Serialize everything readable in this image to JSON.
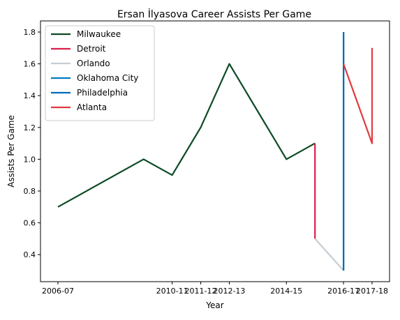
{
  "chart_data": {
    "type": "line",
    "title": "Ersan İlyasova Career Assists Per Game",
    "xlabel": "Year",
    "ylabel": "Assists Per Game",
    "x_tick_labels": [
      "2006-07",
      "2010-11",
      "2011-12",
      "2012-13",
      "2014-15",
      "2016-17",
      "2017-18"
    ],
    "y_ticks": [
      0.4,
      0.6,
      0.8,
      1.0,
      1.2,
      1.4,
      1.6,
      1.8
    ],
    "y_tick_labels": [
      "0.4",
      "0.6",
      "0.8",
      "1.0",
      "1.2",
      "1.4",
      "1.6",
      "1.8"
    ],
    "ylim": [
      0.23,
      1.87
    ],
    "grid": false,
    "legend_position": "top-left",
    "series": [
      {
        "name": "Milwaukee",
        "color": "#0b4a24",
        "points": [
          {
            "x": "2006-07",
            "y": 0.7
          },
          {
            "x": "2009-10",
            "y": 1.0
          },
          {
            "x": "2010-11",
            "y": 0.9
          },
          {
            "x": "2011-12",
            "y": 1.2
          },
          {
            "x": "2012-13",
            "y": 1.6
          },
          {
            "x": "2013-14",
            "y": 1.3
          },
          {
            "x": "2014-15",
            "y": 1.0
          },
          {
            "x": "2015-16",
            "y": 1.1
          }
        ]
      },
      {
        "name": "Detroit",
        "color": "#d91f4d",
        "points": [
          {
            "x": "2015-16",
            "y": 1.1
          },
          {
            "x": "2015-16",
            "y": 0.5
          }
        ]
      },
      {
        "name": "Orlando",
        "color": "#c4ced4",
        "points": [
          {
            "x": "2015-16",
            "y": 0.5
          },
          {
            "x": "2016-17",
            "y": 0.3
          }
        ]
      },
      {
        "name": "Oklahoma City",
        "color": "#007ac1",
        "points": [
          {
            "x": "2016-17",
            "y": 0.3
          },
          {
            "x": "2016-17",
            "y": 1.8
          }
        ]
      },
      {
        "name": "Philadelphia",
        "color": "#006bb6",
        "points": [
          {
            "x": "2016-17",
            "y": 0.3
          },
          {
            "x": "2016-17",
            "y": 1.8
          }
        ]
      },
      {
        "name": "Atlanta",
        "color": "#e03a3e",
        "points": [
          {
            "x": "2016-17",
            "y": 1.6
          },
          {
            "x": "2017-18",
            "y": 1.1
          },
          {
            "x": "2017-18",
            "y": 1.7
          }
        ]
      }
    ]
  }
}
